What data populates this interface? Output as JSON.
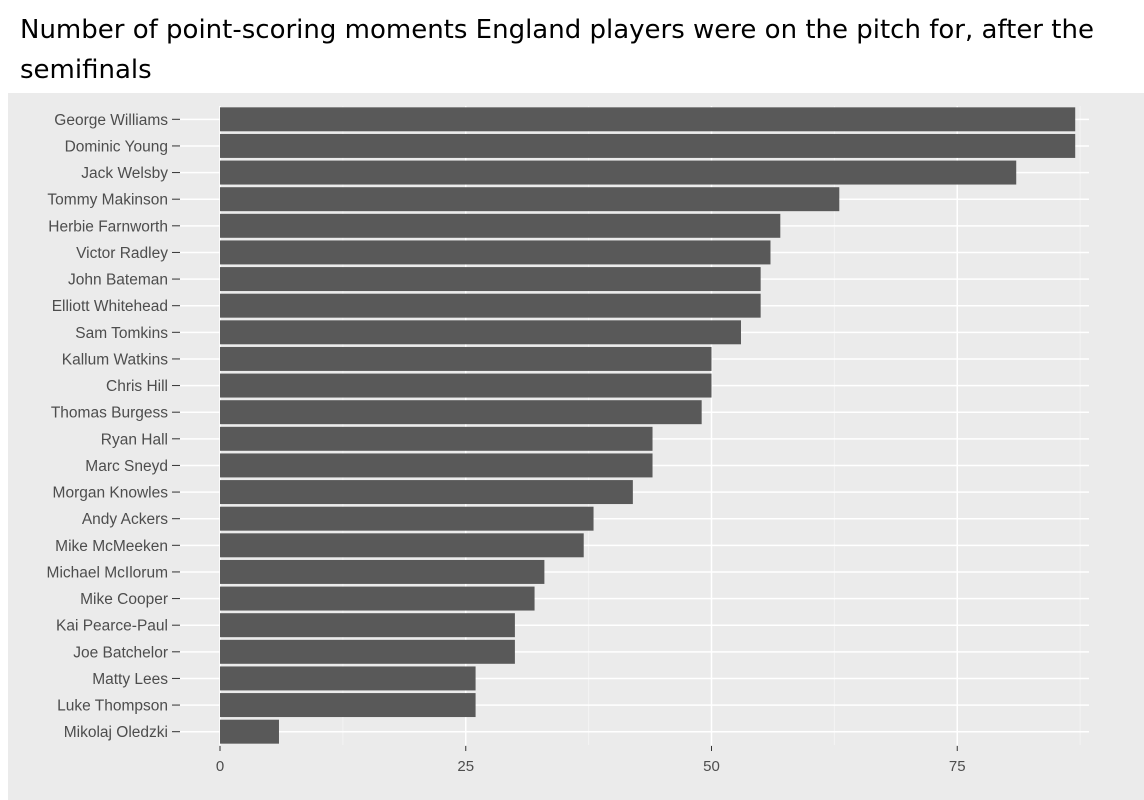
{
  "chart_data": {
    "type": "bar",
    "orientation": "horizontal",
    "title": "Number of point-scoring moments England players were on the pitch for, after the semifinals",
    "xlabel": "",
    "ylabel": "",
    "xlim": [
      0,
      89
    ],
    "x_ticks": [
      0,
      25,
      50,
      75
    ],
    "grid": true,
    "categories": [
      "George Williams",
      "Dominic Young",
      "Jack Welsby",
      "Tommy Makinson",
      "Herbie Farnworth",
      "Victor Radley",
      "John Bateman",
      "Elliott Whitehead",
      "Sam Tomkins",
      "Kallum Watkins",
      "Chris Hill",
      "Thomas Burgess",
      "Ryan Hall",
      "Marc Sneyd",
      "Morgan Knowles",
      "Andy Ackers",
      "Mike McMeeken",
      "Michael McIlorum",
      "Mike Cooper",
      "Kai Pearce-Paul",
      "Joe Batchelor",
      "Matty Lees",
      "Luke Thompson",
      "Mikolaj Oledzki"
    ],
    "values": [
      87,
      87,
      81,
      63,
      57,
      56,
      55,
      55,
      53,
      50,
      50,
      49,
      44,
      44,
      42,
      38,
      37,
      33,
      32,
      30,
      30,
      26,
      26,
      6
    ],
    "colors": {
      "bar": "#595959",
      "panel": "#ebebeb",
      "grid_major": "#ffffff",
      "grid_minor": "#f4f4f4",
      "axis_text": "#4d4d4d"
    }
  }
}
